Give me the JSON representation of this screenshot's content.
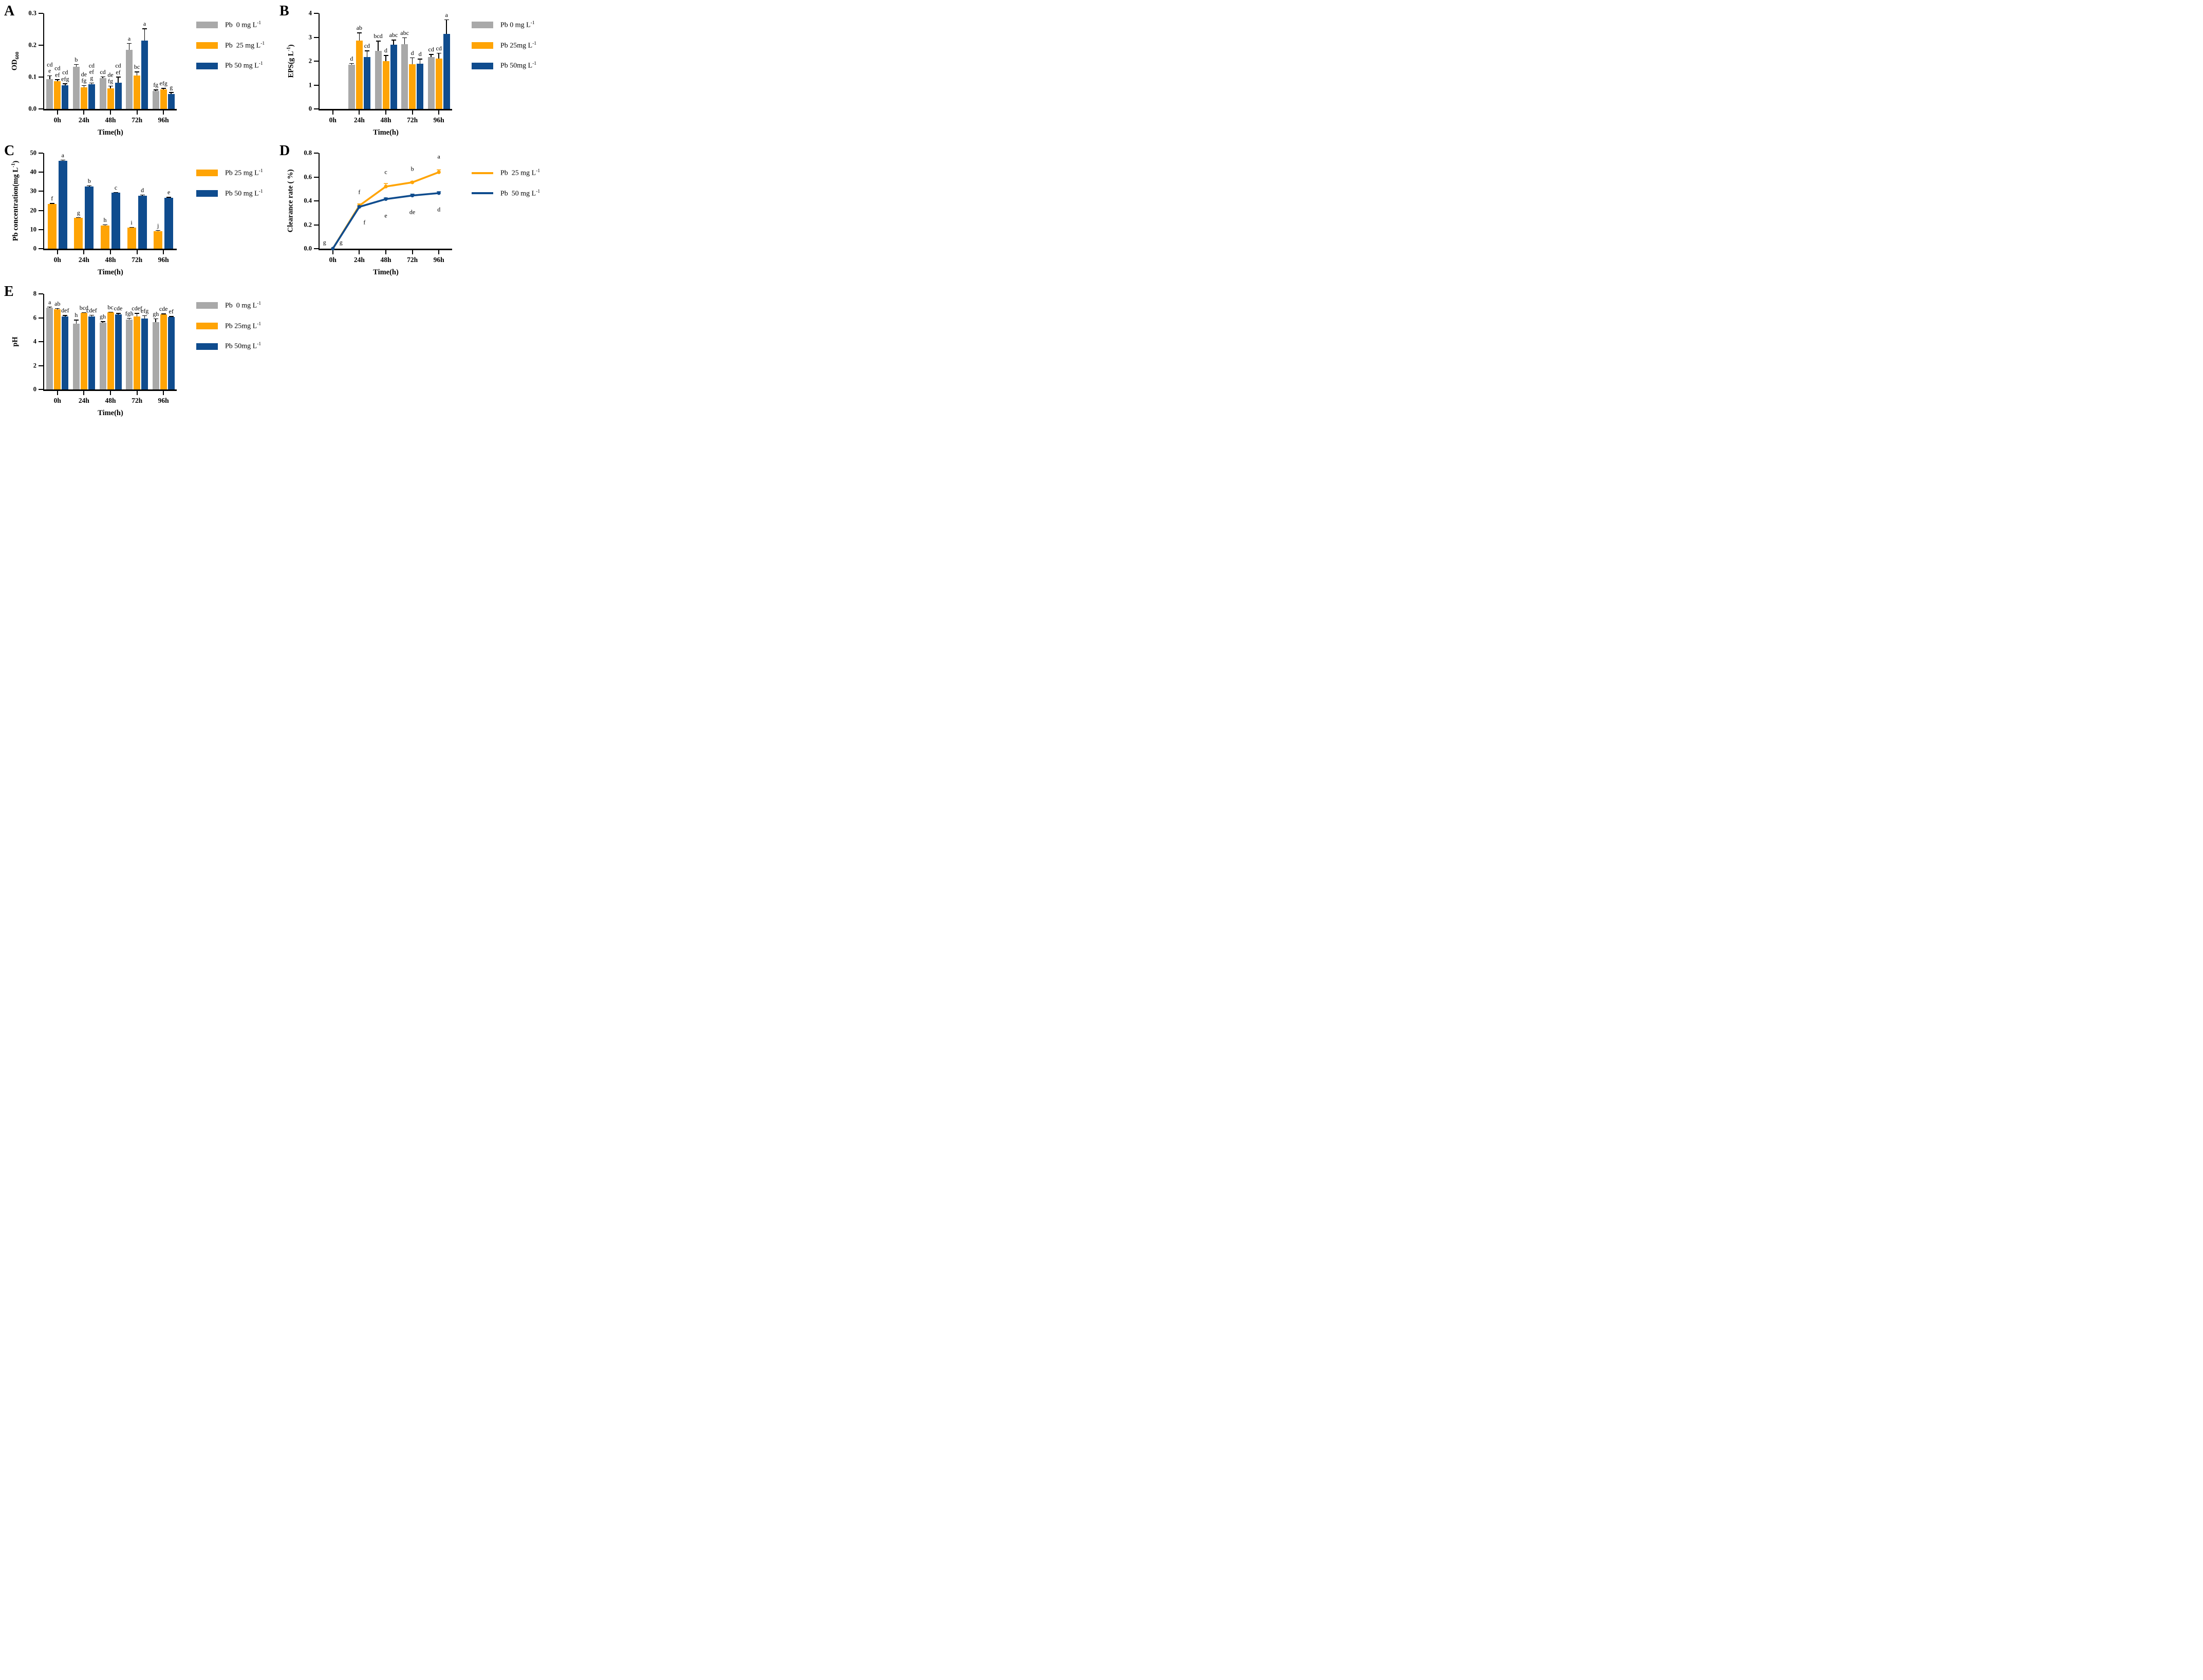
{
  "colors": {
    "gray": "#A9A9A9",
    "orange": "#FFA405",
    "blue": "#0F4C8E",
    "axis": "#000000"
  },
  "chart_data": [
    {
      "letter": "A",
      "type": "bar",
      "ylabel": [
        [
          "OD",
          ""
        ],
        [
          "600",
          "sub"
        ]
      ],
      "xlabel": "Time(h)",
      "categories": [
        "0h",
        "24h",
        "48h",
        "72h",
        "96h"
      ],
      "ymax": 0.3,
      "yticks": [
        {
          "v": 0,
          "t": "0.0"
        },
        {
          "v": 0.1,
          "t": "0.1"
        },
        {
          "v": 0.2,
          "t": "0.2"
        },
        {
          "v": 0.3,
          "t": "0.3"
        }
      ],
      "series": [
        {
          "name": "Pb 0 mg/L",
          "color": "gray",
          "values": [
            0.093,
            0.133,
            0.096,
            0.185,
            0.056
          ],
          "errors": [
            0.012,
            0.008,
            0.006,
            0.022,
            0.005
          ],
          "labels": [
            "cd\ne",
            "b",
            "cd",
            "a",
            "fg"
          ]
        },
        {
          "name": "Pb 25 mg/L",
          "color": "orange",
          "values": [
            0.087,
            0.068,
            0.065,
            0.105,
            0.062
          ],
          "errors": [
            0.006,
            0.007,
            0.008,
            0.012,
            0.004
          ],
          "labels": [
            "cd\nef",
            "de\nfg",
            "de\nfg",
            "bc",
            "efg"
          ]
        },
        {
          "name": "Pb 50 mg/L",
          "color": "blue",
          "values": [
            0.075,
            0.078,
            0.083,
            0.215,
            0.047
          ],
          "errors": [
            0.005,
            0.005,
            0.018,
            0.038,
            0.006
          ],
          "labels": [
            "cd\nefg",
            "cd\nef\ng",
            "cd\nef",
            "a",
            "g"
          ]
        }
      ],
      "legend_style": "bar",
      "legend": [
        {
          "color": "gray",
          "label": [
            [
              "Pb  0 mg L",
              ""
            ],
            [
              "-1",
              "sup"
            ]
          ]
        },
        {
          "color": "orange",
          "label": [
            [
              "Pb  25 mg L",
              ""
            ],
            [
              "-1",
              "sup"
            ]
          ]
        },
        {
          "color": "blue",
          "label": [
            [
              "Pb 50 mg L",
              ""
            ],
            [
              "-1",
              "sup"
            ]
          ]
        }
      ]
    },
    {
      "letter": "B",
      "type": "bar",
      "ylabel": [
        [
          "EPS(g L",
          ""
        ],
        [
          "-1",
          "sup"
        ],
        [
          ")",
          ""
        ]
      ],
      "xlabel": "Time(h)",
      "categories": [
        "0h",
        "24h",
        "48h",
        "72h",
        "96h"
      ],
      "ymax": 4,
      "yticks": [
        {
          "v": 0,
          "t": "0"
        },
        {
          "v": 1,
          "t": "1"
        },
        {
          "v": 2,
          "t": "2"
        },
        {
          "v": 3,
          "t": "3"
        },
        {
          "v": 4,
          "t": "4"
        }
      ],
      "series": [
        {
          "name": "Pb 0 mg/L",
          "color": "gray",
          "values": [
            null,
            1.85,
            2.43,
            2.7,
            2.18
          ],
          "errors": [
            null,
            0.07,
            0.42,
            0.3,
            0.12
          ],
          "labels": [
            null,
            "d",
            "bcd",
            "abc",
            "cd"
          ]
        },
        {
          "name": "Pb 25 mg/L",
          "color": "orange",
          "values": [
            null,
            2.87,
            2.0,
            1.88,
            2.1
          ],
          "errors": [
            null,
            0.33,
            0.25,
            0.28,
            0.25
          ],
          "labels": [
            null,
            "ab",
            "d",
            "d",
            "cd"
          ]
        },
        {
          "name": "Pb 50 mg/L",
          "color": "blue",
          "values": [
            null,
            2.17,
            2.68,
            1.9,
            3.15
          ],
          "errors": [
            null,
            0.28,
            0.22,
            0.2,
            0.6
          ],
          "labels": [
            null,
            "cd",
            "abc",
            "d",
            "a"
          ]
        }
      ],
      "legend_style": "bar",
      "legend": [
        {
          "color": "gray",
          "label": [
            [
              "Pb 0 mg L",
              ""
            ],
            [
              "-1",
              "sup"
            ]
          ]
        },
        {
          "color": "orange",
          "label": [
            [
              "Pb 25mg L",
              ""
            ],
            [
              "-1",
              "sup"
            ]
          ]
        },
        {
          "color": "blue",
          "label": [
            [
              "Pb 50mg L",
              ""
            ],
            [
              "-1",
              "sup"
            ]
          ]
        }
      ]
    },
    {
      "letter": "C",
      "type": "bar",
      "ylabel": [
        [
          "Pb concentration(mg L",
          ""
        ],
        [
          "-1",
          "sup"
        ],
        [
          ")",
          ""
        ]
      ],
      "xlabel": "Time(h)",
      "categories": [
        "0h",
        "24h",
        "48h",
        "72h",
        "96h"
      ],
      "ymax": 50,
      "yticks": [
        {
          "v": 0,
          "t": "0"
        },
        {
          "v": 10,
          "t": "10"
        },
        {
          "v": 20,
          "t": "20"
        },
        {
          "v": 30,
          "t": "30"
        },
        {
          "v": 40,
          "t": "40"
        },
        {
          "v": 50,
          "t": "50"
        }
      ],
      "series": [
        {
          "name": "Pb 25 mg/L",
          "color": "orange",
          "values": [
            23.5,
            16.0,
            12.0,
            11.0,
            9.2
          ],
          "errors": [
            0.4,
            0.5,
            0.7,
            0.4,
            0.5
          ],
          "labels": [
            "f",
            "g",
            "h",
            "i",
            "j"
          ]
        },
        {
          "name": "Pb 50 mg/L",
          "color": "blue",
          "values": [
            46.0,
            32.5,
            29.2,
            27.8,
            26.5
          ],
          "errors": [
            0.6,
            0.6,
            0.5,
            0.5,
            0.6
          ],
          "labels": [
            "a",
            "b",
            "c",
            "d",
            "e"
          ]
        }
      ],
      "legend_style": "bar",
      "legend": [
        {
          "color": "orange",
          "label": [
            [
              "Pb 25 mg L",
              ""
            ],
            [
              "-1",
              "sup"
            ]
          ]
        },
        {
          "color": "blue",
          "label": [
            [
              "Pb 50 mg L",
              ""
            ],
            [
              "-1",
              "sup"
            ]
          ]
        }
      ]
    },
    {
      "letter": "D",
      "type": "line",
      "ylabel": [
        [
          "Clearance rate ( %)",
          ""
        ]
      ],
      "xlabel": "Time(h)",
      "categories": [
        "0h",
        "24h",
        "48h",
        "72h",
        "96h"
      ],
      "ymax": 0.8,
      "yticks": [
        {
          "v": 0,
          "t": "0.0"
        },
        {
          "v": 0.2,
          "t": "0.2"
        },
        {
          "v": 0.4,
          "t": "0.4"
        },
        {
          "v": 0.6,
          "t": "0.6"
        },
        {
          "v": 0.8,
          "t": "0.8"
        }
      ],
      "series": [
        {
          "name": "Pb 25 mg/L",
          "color": "orange",
          "values": [
            0.0,
            0.36,
            0.52,
            0.555,
            0.64
          ],
          "errors": [
            0,
            0.015,
            0.025,
            0.008,
            0.02
          ],
          "labels": [
            "g",
            "f",
            "c",
            "b",
            "a"
          ],
          "label_offsets": [
            [
              -16,
              -12
            ],
            [
              0,
              -26
            ],
            [
              0,
              -28
            ],
            [
              0,
              -26
            ],
            [
              0,
              -30
            ]
          ]
        },
        {
          "name": "Pb 50 mg/L",
          "color": "blue",
          "values": [
            0.0,
            0.35,
            0.415,
            0.445,
            0.465
          ],
          "errors": [
            0,
            0.008,
            0.01,
            0.012,
            0.012
          ],
          "labels": [
            "g",
            "f",
            "e",
            "de",
            "d"
          ],
          "label_offsets": [
            [
              16,
              -12
            ],
            [
              10,
              30
            ],
            [
              0,
              32
            ],
            [
              0,
              32
            ],
            [
              0,
              32
            ]
          ]
        }
      ],
      "legend_style": "line",
      "legend": [
        {
          "color": "orange",
          "label": [
            [
              "Pb  25 mg L",
              ""
            ],
            [
              "-1",
              "sup"
            ]
          ]
        },
        {
          "color": "blue",
          "label": [
            [
              "Pb  50 mg L",
              ""
            ],
            [
              "-1",
              "sup"
            ]
          ]
        }
      ]
    },
    {
      "letter": "E",
      "type": "bar",
      "ylabel": [
        [
          "pH",
          ""
        ]
      ],
      "xlabel": "Time(h)",
      "categories": [
        "0h",
        "24h",
        "48h",
        "72h",
        "96h"
      ],
      "ymax": 8,
      "yticks": [
        {
          "v": 0,
          "t": "0"
        },
        {
          "v": 2,
          "t": "2"
        },
        {
          "v": 4,
          "t": "4"
        },
        {
          "v": 6,
          "t": "6"
        },
        {
          "v": 8,
          "t": "8"
        }
      ],
      "series": [
        {
          "name": "Pb 0 mg/L",
          "color": "gray",
          "values": [
            6.85,
            5.5,
            5.6,
            5.85,
            5.65
          ],
          "errors": [
            0.08,
            0.35,
            0.12,
            0.15,
            0.3
          ],
          "labels": [
            "a",
            "h",
            "gh",
            "fgh",
            "gh"
          ]
        },
        {
          "name": "Pb 25 mg/L",
          "color": "orange",
          "values": [
            6.7,
            6.4,
            6.45,
            6.1,
            6.3
          ],
          "errors": [
            0.1,
            0.07,
            0.06,
            0.3,
            0.05
          ],
          "labels": [
            "ab",
            "bcd",
            "bc",
            "cdef",
            "cde"
          ]
        },
        {
          "name": "Pb 50 mg/L",
          "color": "blue",
          "values": [
            6.1,
            6.1,
            6.3,
            5.95,
            6.05
          ],
          "errors": [
            0.12,
            0.15,
            0.1,
            0.25,
            0.08
          ],
          "labels": [
            "def",
            "cdef",
            "cde",
            "efg",
            "ef"
          ]
        }
      ],
      "legend_style": "bar",
      "legend": [
        {
          "color": "gray",
          "label": [
            [
              "Pb  0 mg L",
              ""
            ],
            [
              "-1",
              "sup"
            ]
          ]
        },
        {
          "color": "orange",
          "label": [
            [
              "Pb 25mg L",
              ""
            ],
            [
              "-1",
              "sup"
            ]
          ]
        },
        {
          "color": "blue",
          "label": [
            [
              "Pb 50mg L",
              ""
            ],
            [
              "-1",
              "sup"
            ]
          ]
        }
      ]
    }
  ]
}
